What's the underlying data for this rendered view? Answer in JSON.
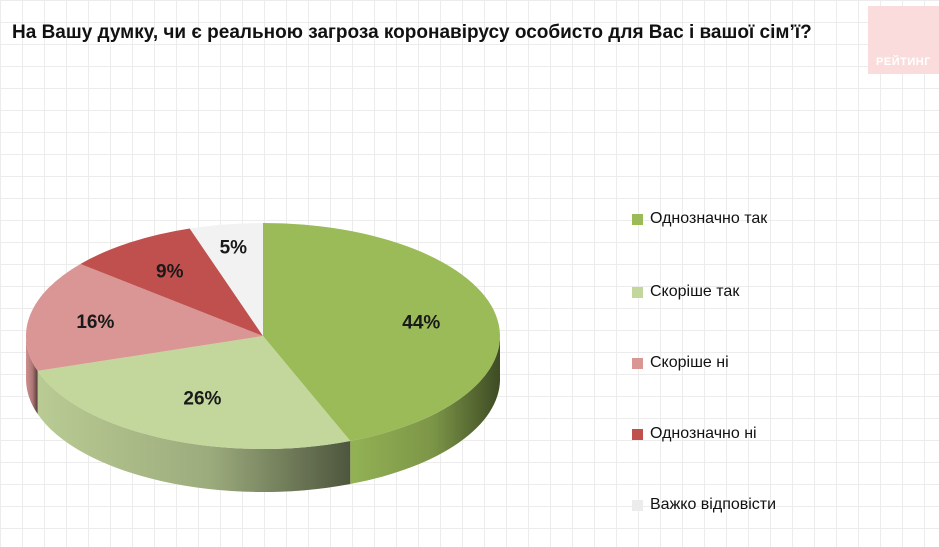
{
  "title": "На Вашу думку, чи є реальною загроза коронавірусу особисто для Вас і вашої сім’ї?",
  "logo": {
    "text": "РЕЙТИНГ"
  },
  "chart_data": {
    "type": "pie",
    "title": "На Вашу думку, чи є реальною загроза коронавірусу особисто для Вас і вашої сім’ї?",
    "categories": [
      "Однозначно так",
      "Скоріше так",
      "Скоріше ні",
      "Однозначно ні",
      "Важко відповісти"
    ],
    "values": [
      44,
      26,
      16,
      9,
      5
    ],
    "labels": [
      "44%",
      "26%",
      "16%",
      "9%",
      "5%"
    ],
    "colors": [
      "#9bbb59",
      "#c3d69b",
      "#d99694",
      "#c0504d",
      "#f2f2f2"
    ],
    "legend_position": "right"
  }
}
